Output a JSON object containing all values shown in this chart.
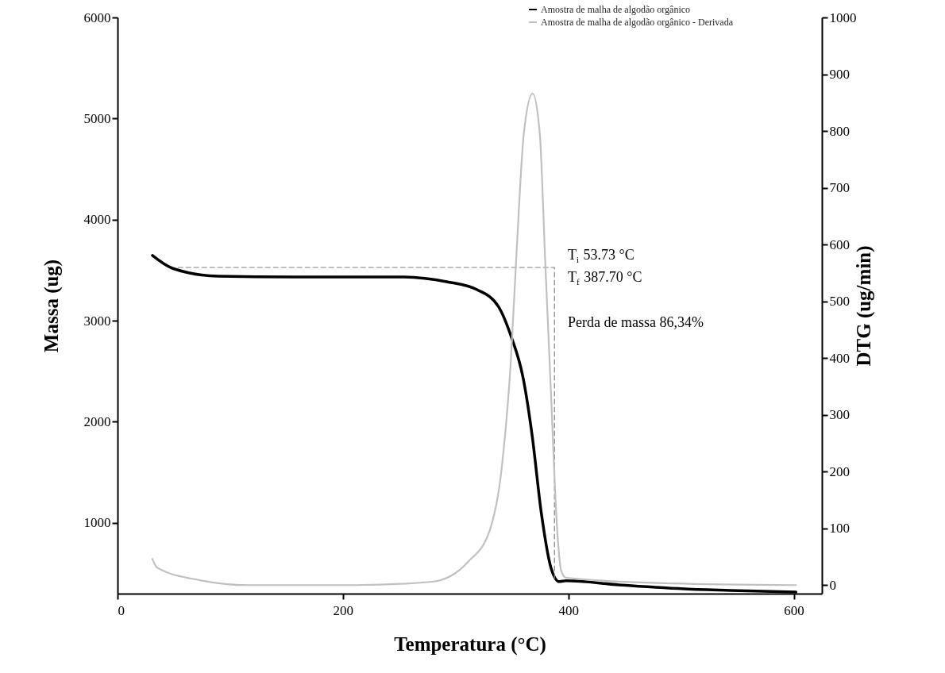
{
  "chart_data": {
    "type": "line",
    "xlabel": "Temperatura (°C)",
    "ylabel": "Massa (ug)",
    "y2label": "DTG (ug/min)",
    "xlim": [
      0,
      625
    ],
    "xticks": [
      0,
      200,
      400,
      600
    ],
    "ylim": [
      300,
      6000
    ],
    "yticks": [
      1000,
      2000,
      3000,
      4000,
      5000,
      6000
    ],
    "y2lim": [
      -15,
      1000
    ],
    "y2ticks": [
      0,
      100,
      200,
      300,
      400,
      500,
      600,
      700,
      800,
      900,
      1000
    ],
    "legend": "top right",
    "series": [
      {
        "name": "Amostra de malha de algodão orgânico",
        "color": "#000000",
        "axis": "y",
        "x": [
          31,
          48.6,
          89,
          157,
          251,
          292,
          319,
          338,
          349,
          360,
          368,
          376,
          384.5,
          392,
          398,
          445,
          503,
          544,
          602
        ],
        "values": [
          3645,
          3519,
          3441,
          3433,
          3433,
          3386,
          3307,
          3139,
          2852,
          2428,
          1855,
          1100,
          560,
          419,
          427,
          387,
          348,
          332,
          316
        ]
      },
      {
        "name": "Amostra de malha de algodão orgânico - Derivada",
        "color": "#c0c0c0",
        "axis": "y2",
        "x": [
          31,
          35,
          75,
          116,
          211,
          279,
          311,
          330,
          341,
          349,
          353.5,
          360.6,
          368.3,
          374.6,
          379.6,
          384.5,
          390,
          393.7,
          398,
          492,
          602
        ],
        "values": [
          46,
          31,
          8,
          0,
          0,
          6,
          41,
          95,
          208,
          396,
          565,
          797,
          866,
          797,
          565,
          343,
          101,
          25,
          13,
          3,
          0
        ]
      },
      {
        "color": "#808080",
        "axis": "y",
        "line_style": "dashed",
        "x": [
          53.73,
          387.7,
          387.7
        ],
        "values": [
          3527,
          3527,
          440
        ]
      }
    ],
    "annotations": [
      "T$_{i}$ 53.73 °C",
      "T$_{f}$ 387.70 °C",
      "Perda de massa 86,34%"
    ]
  }
}
